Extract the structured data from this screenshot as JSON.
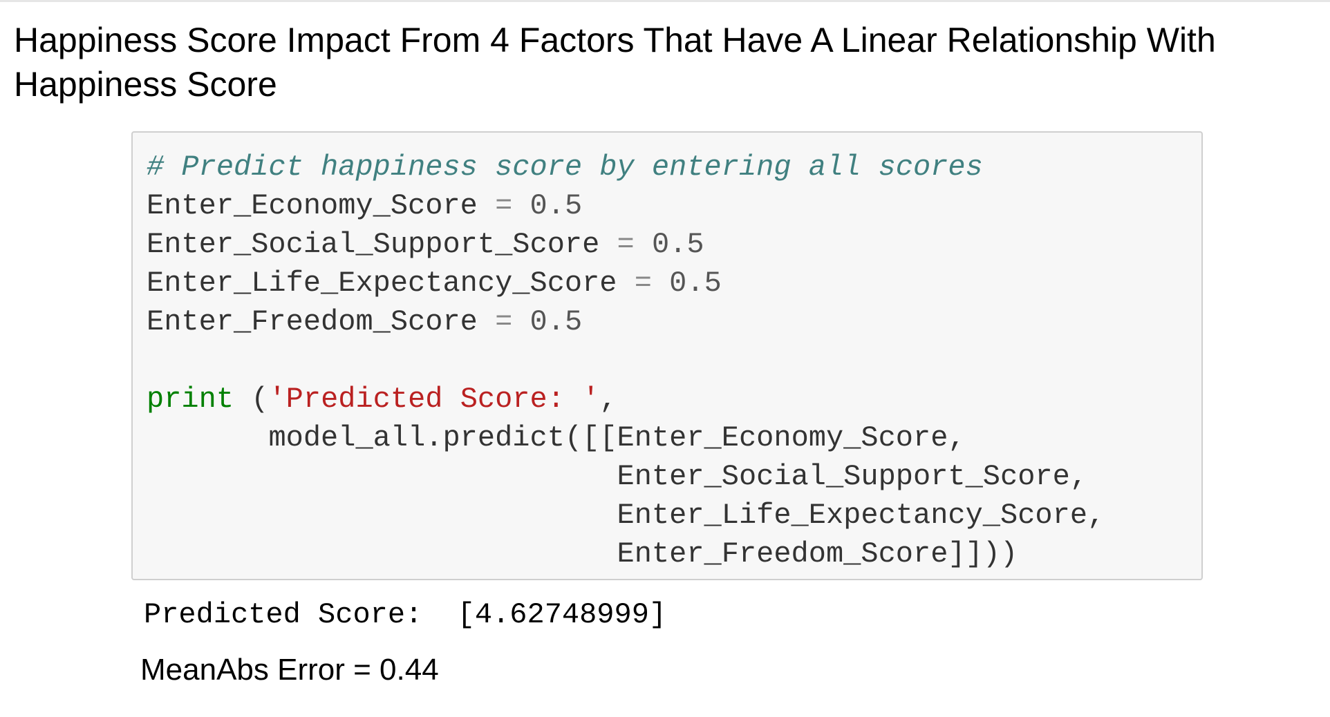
{
  "markdown": {
    "heading": "Happiness Score Impact From 4 Factors That Have A Linear Relationship With Happiness Score"
  },
  "code": {
    "comment": "# Predict happiness score by entering all scores",
    "assignments": [
      {
        "name": "Enter_Economy_Score",
        "op": "=",
        "value": "0.5"
      },
      {
        "name": "Enter_Social_Support_Score",
        "op": "=",
        "value": "0.5"
      },
      {
        "name": "Enter_Life_Expectancy_Score",
        "op": "=",
        "value": "0.5"
      },
      {
        "name": "Enter_Freedom_Score",
        "op": "=",
        "value": "0.5"
      }
    ],
    "print_keyword": "print",
    "print_open": " (",
    "print_string": "'Predicted Score: '",
    "print_comma": ",",
    "call_indent": "       ",
    "call_text": "model_all.predict([[",
    "args": [
      "Enter_Economy_Score,",
      "Enter_Social_Support_Score,",
      "Enter_Life_Expectancy_Score,",
      "Enter_Freedom_Score]]))"
    ],
    "args_indent": "                           "
  },
  "output": {
    "text": "Predicted Score:  [4.62748999]"
  },
  "metric": {
    "text": "MeanAbs Error = 0.44"
  }
}
